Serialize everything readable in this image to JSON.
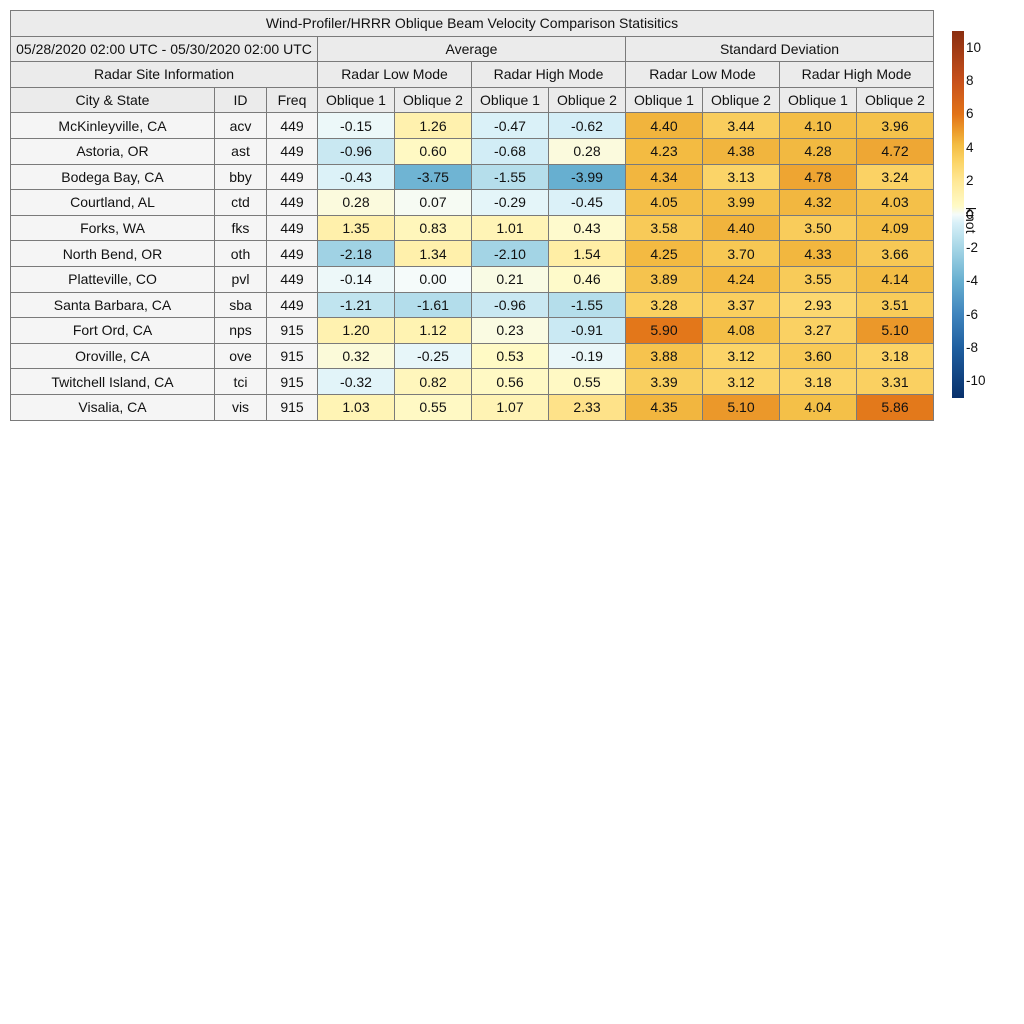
{
  "chart_data": {
    "type": "table",
    "title": "Wind-Profiler/HRRR Oblique Beam Velocity Comparison Statisitics",
    "date_range": "05/28/2020 02:00 UTC - 05/30/2020 02:00 UTC",
    "groups": {
      "average": "Average",
      "std": "Standard Deviation"
    },
    "site_info_label": "Radar Site Information",
    "modes": [
      "Radar Low Mode",
      "Radar High Mode",
      "Radar Low Mode",
      "Radar High Mode"
    ],
    "columns": [
      "City & State",
      "ID",
      "Freq",
      "Oblique 1",
      "Oblique 2",
      "Oblique 1",
      "Oblique 2",
      "Oblique 1",
      "Oblique 2",
      "Oblique 1",
      "Oblique 2"
    ],
    "rows": [
      {
        "city": "McKinleyville, CA",
        "id": "acv",
        "freq": "449",
        "values": [
          "-0.15",
          "1.26",
          "-0.47",
          "-0.62",
          "4.40",
          "3.44",
          "4.10",
          "3.96"
        ]
      },
      {
        "city": "Astoria, OR",
        "id": "ast",
        "freq": "449",
        "values": [
          "-0.96",
          "0.60",
          "-0.68",
          "0.28",
          "4.23",
          "4.38",
          "4.28",
          "4.72"
        ]
      },
      {
        "city": "Bodega Bay, CA",
        "id": "bby",
        "freq": "449",
        "values": [
          "-0.43",
          "-3.75",
          "-1.55",
          "-3.99",
          "4.34",
          "3.13",
          "4.78",
          "3.24"
        ]
      },
      {
        "city": "Courtland, AL",
        "id": "ctd",
        "freq": "449",
        "values": [
          "0.28",
          "0.07",
          "-0.29",
          "-0.45",
          "4.05",
          "3.99",
          "4.32",
          "4.03"
        ]
      },
      {
        "city": "Forks, WA",
        "id": "fks",
        "freq": "449",
        "values": [
          "1.35",
          "0.83",
          "1.01",
          "0.43",
          "3.58",
          "4.40",
          "3.50",
          "4.09"
        ]
      },
      {
        "city": "North Bend, OR",
        "id": "oth",
        "freq": "449",
        "values": [
          "-2.18",
          "1.34",
          "-2.10",
          "1.54",
          "4.25",
          "3.70",
          "4.33",
          "3.66"
        ]
      },
      {
        "city": "Platteville, CO",
        "id": "pvl",
        "freq": "449",
        "values": [
          "-0.14",
          "0.00",
          "0.21",
          "0.46",
          "3.89",
          "4.24",
          "3.55",
          "4.14"
        ]
      },
      {
        "city": "Santa Barbara, CA",
        "id": "sba",
        "freq": "449",
        "values": [
          "-1.21",
          "-1.61",
          "-0.96",
          "-1.55",
          "3.28",
          "3.37",
          "2.93",
          "3.51"
        ]
      },
      {
        "city": "Fort Ord, CA",
        "id": "nps",
        "freq": "915",
        "values": [
          "1.20",
          "1.12",
          "0.23",
          "-0.91",
          "5.90",
          "4.08",
          "3.27",
          "5.10"
        ]
      },
      {
        "city": "Oroville, CA",
        "id": "ove",
        "freq": "915",
        "values": [
          "0.32",
          "-0.25",
          "0.53",
          "-0.19",
          "3.88",
          "3.12",
          "3.60",
          "3.18"
        ]
      },
      {
        "city": "Twitchell Island, CA",
        "id": "tci",
        "freq": "915",
        "values": [
          "-0.32",
          "0.82",
          "0.56",
          "0.55",
          "3.39",
          "3.12",
          "3.18",
          "3.31"
        ]
      },
      {
        "city": "Visalia, CA",
        "id": "vis",
        "freq": "915",
        "values": [
          "1.03",
          "0.55",
          "1.07",
          "2.33",
          "4.35",
          "5.10",
          "4.04",
          "5.86"
        ]
      }
    ],
    "colorbar": {
      "min": -11,
      "max": 11,
      "unit": "knot",
      "ticks": [
        "10",
        "8",
        "6",
        "4",
        "2",
        "0",
        "-2",
        "-4",
        "-6",
        "-8",
        "-10"
      ],
      "stops": [
        {
          "v": -11,
          "c": "#08306b"
        },
        {
          "v": -8,
          "c": "#1f5fa0"
        },
        {
          "v": -6,
          "c": "#3f84bd"
        },
        {
          "v": -4,
          "c": "#67afd0"
        },
        {
          "v": -2,
          "c": "#a6d6e6"
        },
        {
          "v": -0.5,
          "c": "#d8f0f8"
        },
        {
          "v": 0,
          "c": "#f5fbfa"
        },
        {
          "v": 0.5,
          "c": "#fffac6"
        },
        {
          "v": 2,
          "c": "#ffe896"
        },
        {
          "v": 3.2,
          "c": "#fbd365"
        },
        {
          "v": 4.2,
          "c": "#f3bc43"
        },
        {
          "v": 5,
          "c": "#ec9c2c"
        },
        {
          "v": 6,
          "c": "#e27318"
        },
        {
          "v": 8,
          "c": "#c7501b"
        },
        {
          "v": 11,
          "c": "#8a2e10"
        }
      ]
    }
  }
}
